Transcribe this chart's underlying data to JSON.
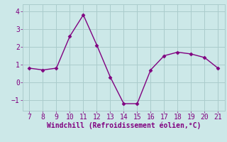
{
  "x": [
    7,
    8,
    9,
    10,
    11,
    12,
    13,
    14,
    15,
    16,
    17,
    18,
    19,
    20,
    21
  ],
  "y": [
    0.8,
    0.7,
    0.8,
    2.6,
    3.8,
    2.1,
    0.3,
    -1.2,
    -1.2,
    0.7,
    1.5,
    1.7,
    1.6,
    1.4,
    0.8
  ],
  "line_color": "#800080",
  "marker_color": "#800080",
  "bg_color": "#cce8e8",
  "grid_color": "#aacccc",
  "xlabel": "Windchill (Refroidissement éolien,°C)",
  "xlabel_color": "#800080",
  "xlabel_fontsize": 7,
  "tick_color": "#800080",
  "tick_fontsize": 7,
  "xlim": [
    6.5,
    21.5
  ],
  "ylim": [
    -1.6,
    4.4
  ],
  "yticks": [
    -1,
    0,
    1,
    2,
    3,
    4
  ],
  "xticks": [
    7,
    8,
    9,
    10,
    11,
    12,
    13,
    14,
    15,
    16,
    17,
    18,
    19,
    20,
    21
  ],
  "marker_style": "D",
  "marker_size": 2.5,
  "line_width": 1.0
}
